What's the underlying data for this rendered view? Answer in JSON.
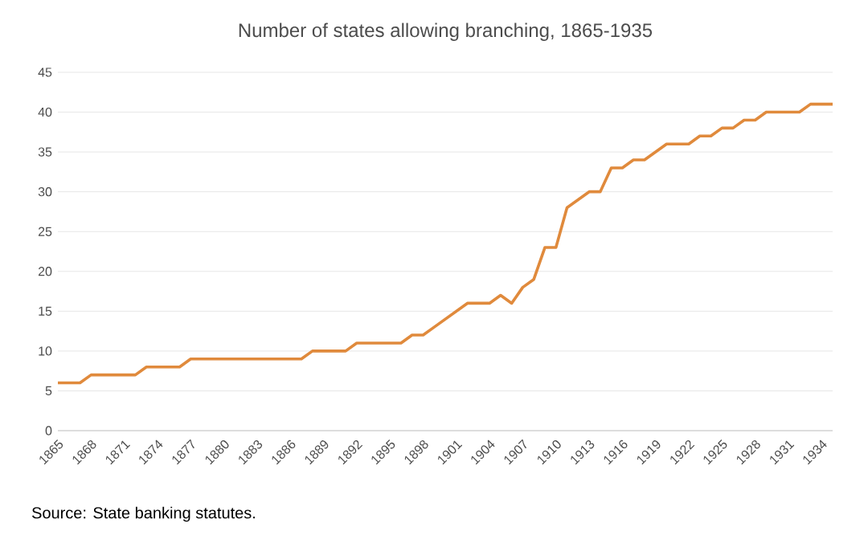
{
  "chart_data": {
    "type": "line",
    "title": "Number of states allowing branching, 1865-1935",
    "x": [
      1865,
      1866,
      1867,
      1868,
      1869,
      1870,
      1871,
      1872,
      1873,
      1874,
      1875,
      1876,
      1877,
      1878,
      1879,
      1880,
      1881,
      1882,
      1883,
      1884,
      1885,
      1886,
      1887,
      1888,
      1889,
      1890,
      1891,
      1892,
      1893,
      1894,
      1895,
      1896,
      1897,
      1898,
      1899,
      1900,
      1901,
      1902,
      1903,
      1904,
      1905,
      1906,
      1907,
      1908,
      1909,
      1910,
      1911,
      1912,
      1913,
      1914,
      1915,
      1916,
      1917,
      1918,
      1919,
      1920,
      1921,
      1922,
      1923,
      1924,
      1925,
      1926,
      1927,
      1928,
      1929,
      1930,
      1931,
      1932,
      1933,
      1934,
      1935
    ],
    "series": [
      {
        "color": "#e08a3c",
        "values": [
          6,
          6,
          6,
          7,
          7,
          7,
          7,
          7,
          8,
          8,
          8,
          8,
          9,
          9,
          9,
          9,
          9,
          9,
          9,
          9,
          9,
          9,
          9,
          10,
          10,
          10,
          10,
          11,
          11,
          11,
          11,
          11,
          12,
          12,
          13,
          14,
          15,
          16,
          16,
          16,
          17,
          16,
          18,
          19,
          23,
          23,
          28,
          29,
          30,
          30,
          33,
          33,
          34,
          34,
          35,
          36,
          36,
          36,
          37,
          37,
          38,
          38,
          39,
          39,
          40,
          40,
          40,
          40,
          41,
          41,
          41
        ]
      }
    ],
    "xlim": [
      1865,
      1935
    ],
    "xticks": [
      1865,
      1868,
      1871,
      1874,
      1877,
      1880,
      1883,
      1886,
      1889,
      1892,
      1895,
      1898,
      1901,
      1904,
      1907,
      1910,
      1913,
      1916,
      1919,
      1922,
      1925,
      1928,
      1931,
      1934
    ],
    "ylim": [
      0,
      45
    ],
    "yticks": [
      0,
      5,
      10,
      15,
      20,
      25,
      30,
      35,
      40,
      45
    ],
    "grid": "y",
    "legend": false,
    "marker": "none",
    "line_style": "solid",
    "annotations": [
      "Source: State banking statutes."
    ]
  }
}
